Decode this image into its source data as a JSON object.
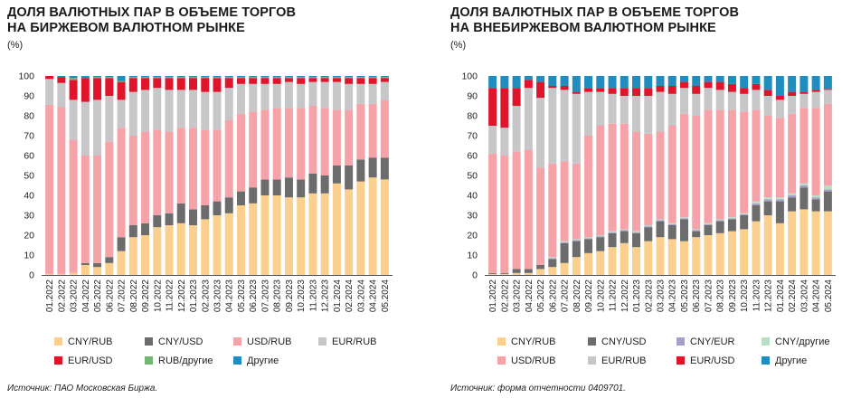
{
  "left": {
    "title_line1": "ДОЛЯ ВАЛЮТНЫХ ПАР В ОБЪЕМЕ ТОРГОВ",
    "title_line2": "НА БИРЖЕВОМ ВАЛЮТНОМ РЫНКЕ",
    "unit": "(%)",
    "source": "Источник: ПАО Московская Биржа."
  },
  "right": {
    "title_line1": "ДОЛЯ ВАЛЮТНЫХ ПАР В ОБЪЕМЕ ТОРГОВ",
    "title_line2": "НА ВНЕБИРЖЕВОМ ВАЛЮТНОМ РЫНКЕ",
    "unit": "(%)",
    "source": "Источник: форма отчетности 0409701."
  },
  "chart_data": [
    {
      "type": "bar",
      "stacked": true,
      "title": "ДОЛЯ ВАЛЮТНЫХ ПАР В ОБЪЕМЕ ТОРГОВ НА БИРЖЕВОМ ВАЛЮТНОМ РЫНКЕ",
      "ylabel": "(%)",
      "ylim": [
        0,
        100
      ],
      "yticks": [
        0,
        10,
        20,
        30,
        40,
        50,
        60,
        70,
        80,
        90,
        100
      ],
      "categories": [
        "01.2022",
        "02.2022",
        "03.2022",
        "04.2022",
        "05.2022",
        "06.2022",
        "07.2022",
        "08.2022",
        "09.2022",
        "10.2022",
        "11.2022",
        "12.2022",
        "01.2023",
        "02.2023",
        "03.2023",
        "04.2023",
        "05.2023",
        "06.2023",
        "07.2023",
        "08.2023",
        "09.2023",
        "10.2023",
        "11.2023",
        "12.2023",
        "01.2024",
        "02.2024",
        "03.2024",
        "04.2024",
        "05.2024"
      ],
      "xtick_labels": [
        "01.2022",
        "02.2022",
        "03.2022",
        "04.2022",
        "05.2022",
        "06.2022",
        "07.2022",
        "08.2022",
        "09.2022",
        "10.2022",
        "11.2022",
        "12.2022",
        "01.2023",
        "02.2023",
        "03.2023",
        "04.2023",
        "05.2023",
        "06.2023",
        "07.2023",
        "08.2023",
        "09.2023",
        "10.2023",
        "11.2023",
        "12.2023",
        "01.2024",
        "02.2024",
        "03.2024",
        "04.2024",
        "05.2024"
      ],
      "legend_columns": 4,
      "series": [
        {
          "name": "CNY/RUB",
          "color": "#fbd08e",
          "values": [
            0.5,
            0.5,
            1,
            5,
            4,
            6,
            12,
            19,
            20,
            24,
            25,
            26,
            25,
            28,
            30,
            31,
            35,
            36,
            40,
            40,
            39,
            39,
            41,
            41,
            46,
            43,
            47,
            49,
            48
          ]
        },
        {
          "name": "CNY/USD",
          "color": "#6c6c6c",
          "values": [
            0,
            0,
            0,
            1,
            2,
            3,
            7,
            6,
            6,
            6,
            6,
            10,
            8,
            7,
            7,
            8,
            7,
            8,
            8,
            8,
            10,
            9,
            10,
            9,
            9,
            12,
            11,
            10,
            11
          ]
        },
        {
          "name": "USD/RUB",
          "color": "#f5a3a8",
          "values": [
            85,
            84,
            67,
            54,
            54,
            58,
            55,
            45,
            46,
            43,
            41,
            38,
            41,
            38,
            36,
            39,
            39,
            38,
            35,
            36,
            35,
            36,
            34,
            34,
            28,
            28,
            28,
            27,
            29
          ]
        },
        {
          "name": "EUR/RUB",
          "color": "#c7c7c9",
          "values": [
            13,
            12,
            20,
            27,
            28,
            23,
            14,
            22,
            21,
            21,
            21,
            19,
            19,
            19,
            19,
            16,
            15,
            14,
            13,
            12,
            13,
            12,
            12,
            13,
            14,
            13,
            10,
            10,
            9
          ]
        },
        {
          "name": "EUR/USD",
          "color": "#e0152b",
          "values": [
            1.5,
            3,
            10,
            12,
            11,
            9,
            9,
            7,
            6,
            5,
            6,
            6,
            6,
            7,
            7,
            5,
            3,
            3,
            3,
            3,
            2,
            3,
            2,
            2,
            2,
            3,
            3,
            3,
            2
          ]
        },
        {
          "name": "RUB/другие",
          "color": "#74b574",
          "values": [
            0,
            0,
            1,
            0,
            0.5,
            0.5,
            0.5,
            0.5,
            0.5,
            0.5,
            0.5,
            0.5,
            0.5,
            0.5,
            0.5,
            0.5,
            0.5,
            0.5,
            0.5,
            0.5,
            0.5,
            0.5,
            0.5,
            0.5,
            0.5,
            0.5,
            0.5,
            0.5,
            0.5
          ]
        },
        {
          "name": "Другие",
          "color": "#1f8dbd",
          "values": [
            0,
            0.5,
            1,
            1,
            0.5,
            0.5,
            2.5,
            0.5,
            0.5,
            0.5,
            0.5,
            0.5,
            0.5,
            0.5,
            0.5,
            0.5,
            0.5,
            0.5,
            0.5,
            0.5,
            0.5,
            0.5,
            0.5,
            0.5,
            0.5,
            0.5,
            0.5,
            0.5,
            0.5
          ]
        }
      ]
    },
    {
      "type": "bar",
      "stacked": true,
      "title": "ДОЛЯ ВАЛЮТНЫХ ПАР В ОБЪЕМЕ ТОРГОВ НА ВНЕБИРЖЕВОМ ВАЛЮТНОМ РЫНКЕ",
      "ylabel": "(%)",
      "ylim": [
        0,
        100
      ],
      "yticks": [
        0,
        10,
        20,
        30,
        40,
        50,
        60,
        70,
        80,
        90,
        100
      ],
      "categories": [
        "01.2022",
        "02.2022",
        "03.2022",
        "04.2022",
        "05.2022",
        "06.2022",
        "07.2022",
        "08.2022",
        "09.2022",
        "10.2022",
        "11.2022",
        "12.2022",
        "01.2023",
        "02.2023",
        "03.2023",
        "04.2023",
        "05.2023",
        "06.2023",
        "07.2023",
        "08.2023",
        "09.2023",
        "10.2023",
        "11.2023",
        "12.2023",
        "01.2024",
        "02.2024",
        "03.2024",
        "04.2024",
        "05.2024"
      ],
      "xtick_labels": [
        "01.2022",
        "02.2022",
        "03.2022",
        "04.2022",
        "05.2022",
        "06.2022",
        "07.2022",
        "08.2022",
        "09.2022",
        "10.2022",
        "11.2022",
        "12.2022",
        "01.2023",
        "02.2023",
        "03.2023",
        "04.2023",
        "05.2023",
        "06.2023",
        "07.2023",
        "08.2023",
        "09.2023",
        "10.2023",
        "11.2023",
        "12.2023",
        "01.2024",
        "02.2024",
        "03.2024",
        "04.2024",
        "05.2024"
      ],
      "legend_columns": 4,
      "series": [
        {
          "name": "CNY/RUB",
          "color": "#fbd08e",
          "values": [
            0.5,
            0.5,
            1,
            1,
            3,
            4,
            6,
            9,
            11,
            12,
            14,
            16,
            14,
            17,
            19,
            18,
            17,
            19,
            20,
            21,
            22,
            23,
            27,
            30,
            26,
            32,
            33,
            32,
            32
          ]
        },
        {
          "name": "CNY/USD",
          "color": "#6c6c6c",
          "values": [
            0.5,
            0.5,
            2,
            2,
            2,
            4,
            10,
            8,
            7,
            7,
            7,
            6,
            7,
            7,
            8,
            7,
            11,
            3,
            5,
            6,
            6,
            7,
            8,
            7,
            11,
            7,
            11,
            6,
            10
          ]
        },
        {
          "name": "CNY/EUR",
          "color": "#a89ec9",
          "values": [
            0,
            0,
            0,
            0,
            0,
            0.5,
            0.5,
            0.5,
            0.5,
            0.5,
            0.5,
            0.5,
            0.5,
            0.5,
            0.5,
            0.5,
            0.5,
            0.5,
            0.5,
            0.5,
            0.5,
            0.5,
            1,
            1,
            1,
            1,
            1,
            1,
            1
          ]
        },
        {
          "name": "CNY/другие",
          "color": "#b8dfc4",
          "values": [
            0,
            0,
            0,
            0,
            0,
            0.5,
            0.5,
            0.5,
            0.5,
            0.5,
            0.5,
            0.5,
            0.5,
            0.5,
            0.5,
            0.5,
            0.5,
            0.5,
            0.5,
            0.5,
            0.5,
            0.5,
            1,
            1,
            1,
            1,
            1,
            1,
            2
          ]
        },
        {
          "name": "USD/RUB",
          "color": "#f5a3a8",
          "values": [
            60,
            59,
            59,
            60,
            49,
            47,
            40,
            38,
            51,
            55,
            54,
            53,
            50,
            46,
            44,
            49,
            52,
            57,
            57,
            55,
            54,
            51,
            46,
            41,
            40,
            40,
            38,
            44,
            41
          ]
        },
        {
          "name": "EUR/RUB",
          "color": "#c7c7c9",
          "values": [
            14,
            14,
            23,
            31,
            35,
            38,
            36,
            35,
            22,
            17,
            15,
            14,
            18,
            19,
            20,
            16,
            13,
            11,
            11,
            10,
            9,
            9,
            10,
            10,
            9,
            9,
            7,
            8,
            7
          ]
        },
        {
          "name": "EUR/USD",
          "color": "#e0152b",
          "values": [
            19,
            20,
            9,
            4,
            8,
            1,
            2,
            1,
            2,
            2,
            3,
            4,
            4,
            4,
            3,
            4,
            3,
            4,
            3,
            4,
            4,
            3,
            3,
            3,
            2,
            2,
            1,
            1,
            0.5
          ]
        },
        {
          "name": "Другие",
          "color": "#1f8dbd",
          "values": [
            6,
            6,
            6,
            2,
            3,
            5,
            5,
            8,
            6,
            6,
            6,
            6,
            6,
            6,
            5,
            5,
            3,
            5,
            3,
            3,
            4,
            6,
            4,
            7,
            10,
            8,
            8,
            7,
            6.5
          ]
        }
      ]
    }
  ]
}
